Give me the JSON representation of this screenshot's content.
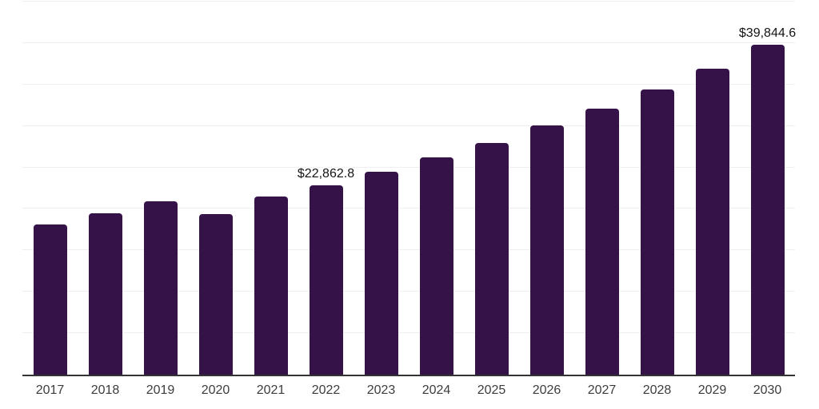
{
  "chart_data": {
    "type": "bar",
    "title": "",
    "xlabel": "",
    "ylabel": "",
    "categories": [
      "2017",
      "2018",
      "2019",
      "2020",
      "2021",
      "2022",
      "2023",
      "2024",
      "2025",
      "2026",
      "2027",
      "2028",
      "2029",
      "2030"
    ],
    "values": [
      18100,
      19500,
      20900,
      19350,
      21530,
      22862.8,
      24480,
      26220,
      27900,
      30020,
      32110,
      34450,
      36950,
      39844.6
    ],
    "data_labels": [
      {
        "category": "2022",
        "text": "$22,862.8"
      },
      {
        "category": "2030",
        "text": "$39,844.6"
      }
    ],
    "ylim": [
      0,
      45000
    ],
    "gridline_step": 5000,
    "grid": true,
    "legend": false,
    "colors": {
      "bar": "#351247",
      "gridline": "#efefef",
      "axis_line": "#333333",
      "tick_label": "#3d3d3d",
      "data_label": "#141414",
      "background": "#ffffff"
    }
  }
}
